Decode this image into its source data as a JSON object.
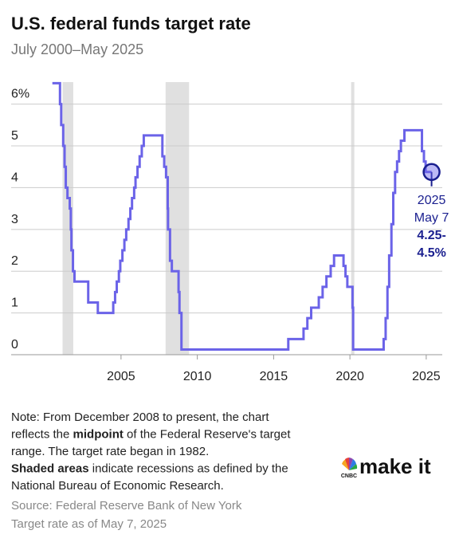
{
  "chart_data": {
    "type": "line",
    "title": "U.S. federal funds target rate",
    "subtitle": "July 2000–May 2025",
    "xlim": [
      1997.8,
      2026.05
    ],
    "xticks": [
      2005,
      2010,
      2015,
      2020,
      2025
    ],
    "ylim": [
      0,
      6.68
    ],
    "yticks": [
      0,
      1,
      2,
      3,
      4,
      5,
      {
        "value": 6,
        "label": "6%"
      }
    ],
    "grid": true,
    "recessions": [
      [
        2001.17,
        2001.87
      ],
      [
        2007.92,
        2009.46
      ],
      [
        2020.08,
        2020.29
      ]
    ],
    "series": [
      {
        "name": "Federal funds target rate",
        "color": "#6b63e8",
        "x": [
          2000.5,
          2001.0,
          2001.0,
          2001.08,
          2001.08,
          2001.21,
          2001.21,
          2001.3,
          2001.3,
          2001.38,
          2001.38,
          2001.49,
          2001.49,
          2001.64,
          2001.64,
          2001.71,
          2001.71,
          2001.75,
          2001.75,
          2001.85,
          2001.85,
          2001.95,
          2001.95,
          2002.85,
          2002.85,
          2003.48,
          2003.48,
          2004.49,
          2004.49,
          2004.61,
          2004.61,
          2004.72,
          2004.72,
          2004.86,
          2004.86,
          2004.95,
          2004.95,
          2005.09,
          2005.09,
          2005.22,
          2005.22,
          2005.34,
          2005.34,
          2005.49,
          2005.49,
          2005.61,
          2005.61,
          2005.72,
          2005.72,
          2005.86,
          2005.86,
          2005.95,
          2005.95,
          2006.08,
          2006.08,
          2006.22,
          2006.22,
          2006.36,
          2006.36,
          2006.49,
          2006.49,
          2007.71,
          2007.71,
          2007.83,
          2007.83,
          2007.95,
          2007.95,
          2008.06,
          2008.06,
          2008.08,
          2008.08,
          2008.21,
          2008.21,
          2008.33,
          2008.33,
          2008.77,
          2008.77,
          2008.83,
          2008.83,
          2008.96,
          2008.96,
          2015.96,
          2015.96,
          2016.96,
          2016.96,
          2017.21,
          2017.21,
          2017.46,
          2017.46,
          2017.96,
          2017.96,
          2018.21,
          2018.21,
          2018.46,
          2018.46,
          2018.74,
          2018.74,
          2018.96,
          2018.96,
          2019.58,
          2019.58,
          2019.71,
          2019.71,
          2019.83,
          2019.83,
          2020.17,
          2020.17,
          2020.21,
          2020.21,
          2022.21,
          2022.21,
          2022.34,
          2022.34,
          2022.46,
          2022.46,
          2022.57,
          2022.57,
          2022.72,
          2022.72,
          2022.84,
          2022.84,
          2022.96,
          2022.96,
          2023.09,
          2023.09,
          2023.22,
          2023.22,
          2023.34,
          2023.34,
          2023.57,
          2023.57,
          2024.72,
          2024.72,
          2024.85,
          2024.85,
          2024.96,
          2024.96,
          2025.35
        ],
        "values": [
          6.5,
          6.5,
          6.0,
          6.0,
          5.5,
          5.5,
          5.0,
          5.0,
          4.5,
          4.5,
          4.0,
          4.0,
          3.75,
          3.75,
          3.5,
          3.5,
          3.0,
          3.0,
          2.5,
          2.5,
          2.0,
          2.0,
          1.75,
          1.75,
          1.25,
          1.25,
          1.0,
          1.0,
          1.25,
          1.25,
          1.5,
          1.5,
          1.75,
          1.75,
          2.0,
          2.0,
          2.25,
          2.25,
          2.5,
          2.5,
          2.75,
          2.75,
          3.0,
          3.0,
          3.25,
          3.25,
          3.5,
          3.5,
          3.75,
          3.75,
          4.0,
          4.0,
          4.25,
          4.25,
          4.5,
          4.5,
          4.75,
          4.75,
          5.0,
          5.0,
          5.25,
          5.25,
          4.75,
          4.75,
          4.5,
          4.5,
          4.25,
          4.25,
          3.5,
          3.5,
          3.0,
          3.0,
          2.25,
          2.25,
          2.0,
          2.0,
          1.5,
          1.5,
          1.0,
          1.0,
          0.125,
          0.125,
          0.375,
          0.375,
          0.625,
          0.625,
          0.875,
          0.875,
          1.125,
          1.125,
          1.375,
          1.375,
          1.625,
          1.625,
          1.875,
          1.875,
          2.125,
          2.125,
          2.375,
          2.375,
          2.125,
          2.125,
          1.875,
          1.875,
          1.625,
          1.625,
          1.125,
          1.125,
          0.125,
          0.125,
          0.375,
          0.375,
          0.875,
          0.875,
          1.625,
          1.625,
          2.375,
          2.375,
          3.125,
          3.125,
          3.875,
          3.875,
          4.375,
          4.375,
          4.625,
          4.625,
          4.875,
          4.875,
          5.125,
          5.125,
          5.375,
          5.375,
          4.875,
          4.875,
          4.625,
          4.625,
          4.375,
          4.375
        ]
      }
    ],
    "annotation": [
      "2025",
      "May 7",
      "4.25-",
      "4.5%"
    ],
    "note": [
      [
        {
          "text": "Note: From December 2008 to present, the chart",
          "bold": false
        }
      ],
      [
        {
          "text": "reflects the ",
          "bold": false
        },
        {
          "text": "midpoint",
          "bold": true
        },
        {
          "text": " of the Federal Reserve's target",
          "bold": false
        }
      ],
      [
        {
          "text": "range. The target rate began in 1982.",
          "bold": false
        }
      ],
      [
        {
          "text": "Shaded areas",
          "bold": true
        },
        {
          "text": " indicate recessions as defined by the",
          "bold": false
        }
      ],
      [
        {
          "text": "National Bureau of Economic Research.",
          "bold": false
        }
      ]
    ],
    "source": [
      "Source: Federal Reserve Bank of New York",
      "Target rate as of May 7, 2025"
    ],
    "brand": "make it",
    "brand_small": "CNBC"
  }
}
